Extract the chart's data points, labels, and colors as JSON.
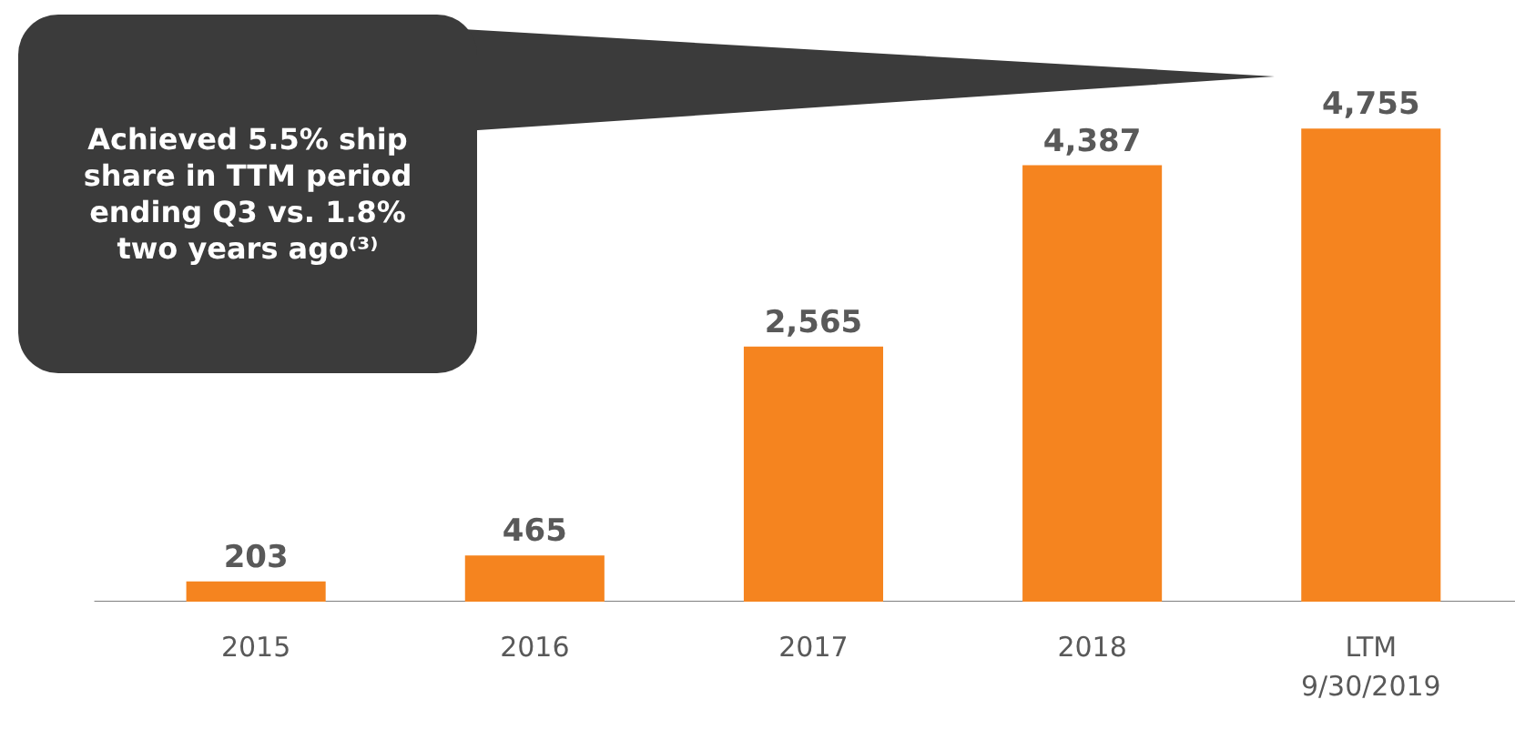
{
  "chart_data": {
    "type": "bar",
    "categories": [
      "2015",
      "2016",
      "2017",
      "2018",
      "LTM\n9/30/2019"
    ],
    "values": [
      203,
      465,
      2565,
      4387,
      4755
    ],
    "color": "#f5841f",
    "value_labels": [
      "203",
      "465",
      "2,565",
      "4,387",
      "4,755"
    ],
    "annotations": [
      "Achieved 5.5% ship share in TTM period ending Q3 vs. 1.8% two years ago⁽³⁾"
    ]
  }
}
